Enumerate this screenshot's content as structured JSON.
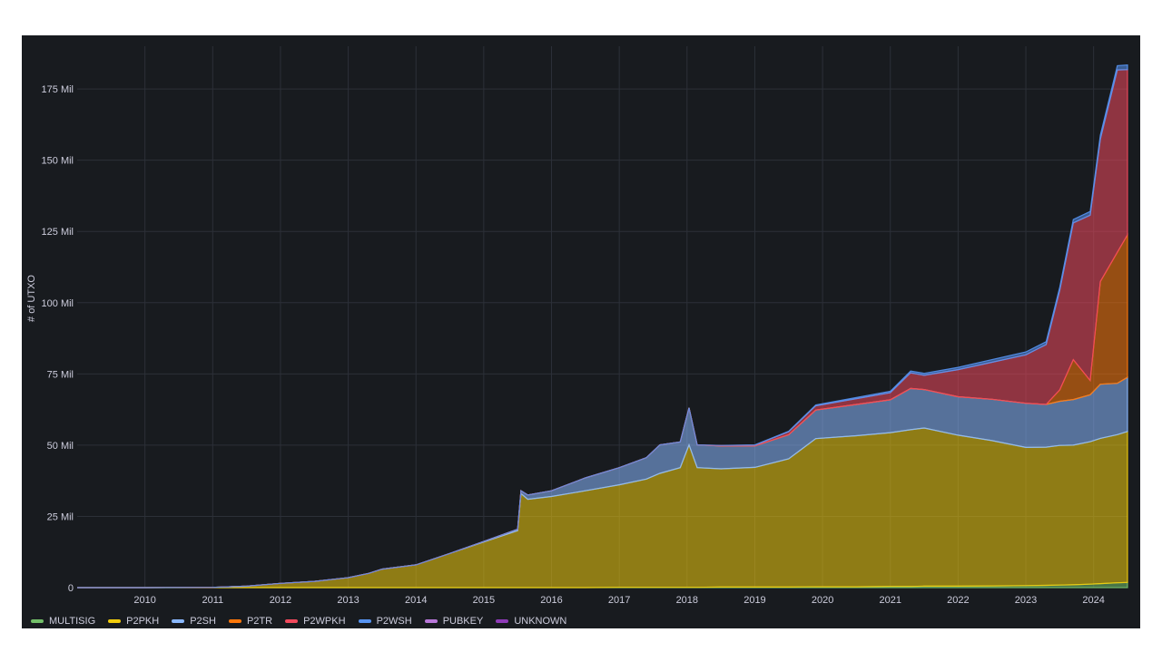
{
  "chart_data": {
    "type": "area",
    "stacked": true,
    "ylabel": "# of UTXO",
    "xlabel": "",
    "x_ticks": [
      "2010",
      "2011",
      "2012",
      "2013",
      "2014",
      "2015",
      "2016",
      "2017",
      "2018",
      "2019",
      "2020",
      "2021",
      "2022",
      "2023",
      "2024"
    ],
    "y_ticks": [
      "0",
      "25 Mil",
      "50 Mil",
      "75 Mil",
      "100 Mil",
      "125 Mil",
      "150 Mil",
      "175 Mil"
    ],
    "ylim": [
      0,
      190
    ],
    "y_unit": "Mil",
    "x": [
      2009.0,
      2010.0,
      2011.0,
      2011.5,
      2012.0,
      2012.5,
      2013.0,
      2013.3,
      2013.5,
      2014.0,
      2014.5,
      2015.0,
      2015.5,
      2015.55,
      2015.65,
      2016.0,
      2016.5,
      2017.0,
      2017.4,
      2017.6,
      2017.9,
      2018.03,
      2018.15,
      2018.5,
      2019.0,
      2019.5,
      2019.9,
      2020.5,
      2021.0,
      2021.3,
      2021.5,
      2022.0,
      2022.5,
      2023.0,
      2023.3,
      2023.5,
      2023.7,
      2023.95,
      2024.1,
      2024.35,
      2024.5
    ],
    "series": [
      {
        "name": "MULTISIG",
        "color": "#73bf69",
        "values": [
          0,
          0,
          0,
          0,
          0,
          0,
          0,
          0,
          0,
          0,
          0,
          0,
          0,
          0,
          0,
          0,
          0,
          0.1,
          0.1,
          0.1,
          0.1,
          0.1,
          0.1,
          0.2,
          0.2,
          0.2,
          0.3,
          0.3,
          0.4,
          0.4,
          0.5,
          0.5,
          0.6,
          0.7,
          0.8,
          0.9,
          1.0,
          1.2,
          1.4,
          1.7,
          1.8
        ]
      },
      {
        "name": "P2PKH",
        "color": "#f2cc0c",
        "values": [
          0,
          0,
          0.1,
          0.5,
          1.5,
          2.2,
          3.5,
          5.0,
          6.5,
          8.0,
          12.0,
          16.0,
          20.0,
          33.0,
          31.0,
          32.0,
          34.0,
          36.0,
          38.0,
          40.0,
          42.0,
          50.0,
          42.0,
          41.5,
          42.0,
          45.0,
          52.0,
          53.0,
          54.0,
          55.0,
          55.5,
          53.0,
          51.0,
          48.5,
          48.5,
          49.0,
          49.0,
          50.0,
          51.0,
          52.0,
          53.0
        ]
      },
      {
        "name": "P2SH",
        "color": "#8ab8ff",
        "values": [
          0,
          0,
          0,
          0,
          0,
          0,
          0,
          0,
          0,
          0,
          0,
          0.2,
          0.5,
          1.0,
          1.5,
          2.0,
          4.5,
          6.0,
          7.5,
          10.0,
          9.0,
          13.0,
          8.0,
          8.0,
          7.5,
          8.5,
          10.0,
          11.0,
          11.5,
          14.5,
          13.5,
          13.5,
          14.5,
          15.5,
          15.0,
          15.5,
          16.0,
          16.5,
          19.0,
          18.0,
          19.0
        ]
      },
      {
        "name": "P2TR",
        "color": "#ff780a",
        "values": [
          0,
          0,
          0,
          0,
          0,
          0,
          0,
          0,
          0,
          0,
          0,
          0,
          0,
          0,
          0,
          0,
          0,
          0,
          0,
          0,
          0,
          0,
          0,
          0,
          0,
          0,
          0,
          0,
          0,
          0,
          0,
          0,
          0,
          0,
          0,
          4.0,
          14.0,
          5.0,
          36.0,
          46.0,
          50.0
        ]
      },
      {
        "name": "P2WPKH",
        "color": "#f2495c",
        "values": [
          0,
          0,
          0,
          0,
          0,
          0,
          0,
          0,
          0,
          0,
          0,
          0,
          0,
          0,
          0,
          0,
          0,
          0,
          0,
          0,
          0,
          0,
          0,
          0.2,
          0.3,
          1.0,
          1.5,
          2.0,
          2.5,
          5.5,
          5.0,
          9.5,
          13.0,
          17.0,
          21.0,
          35.0,
          48.0,
          58.0,
          50.0,
          64.0,
          58.0
        ]
      },
      {
        "name": "P2WSH",
        "color": "#5794f2",
        "values": [
          0,
          0,
          0,
          0,
          0,
          0,
          0,
          0,
          0,
          0,
          0,
          0,
          0,
          0,
          0,
          0,
          0,
          0,
          0,
          0,
          0,
          0,
          0,
          0,
          0.1,
          0.2,
          0.3,
          0.4,
          0.5,
          0.6,
          0.7,
          0.8,
          0.9,
          1.0,
          1.0,
          1.1,
          1.2,
          1.3,
          1.4,
          1.5,
          1.6
        ]
      },
      {
        "name": "PUBKEY",
        "color": "#b877d9",
        "values": [
          0,
          0,
          0,
          0,
          0,
          0,
          0,
          0,
          0,
          0,
          0,
          0,
          0,
          0,
          0,
          0,
          0,
          0,
          0,
          0,
          0,
          0,
          0,
          0,
          0,
          0,
          0,
          0,
          0,
          0,
          0,
          0,
          0,
          0,
          0,
          0,
          0,
          0,
          0,
          0,
          0
        ]
      },
      {
        "name": "UNKNOWN",
        "color": "#8f3bb8",
        "values": [
          0,
          0,
          0,
          0,
          0,
          0,
          0,
          0,
          0,
          0,
          0,
          0,
          0,
          0,
          0,
          0,
          0,
          0,
          0,
          0,
          0,
          0,
          0,
          0,
          0,
          0,
          0,
          0,
          0,
          0,
          0,
          0,
          0,
          0,
          0,
          0,
          0,
          0,
          0,
          0,
          0
        ]
      }
    ],
    "grid": true,
    "legend_position": "bottom-left"
  }
}
